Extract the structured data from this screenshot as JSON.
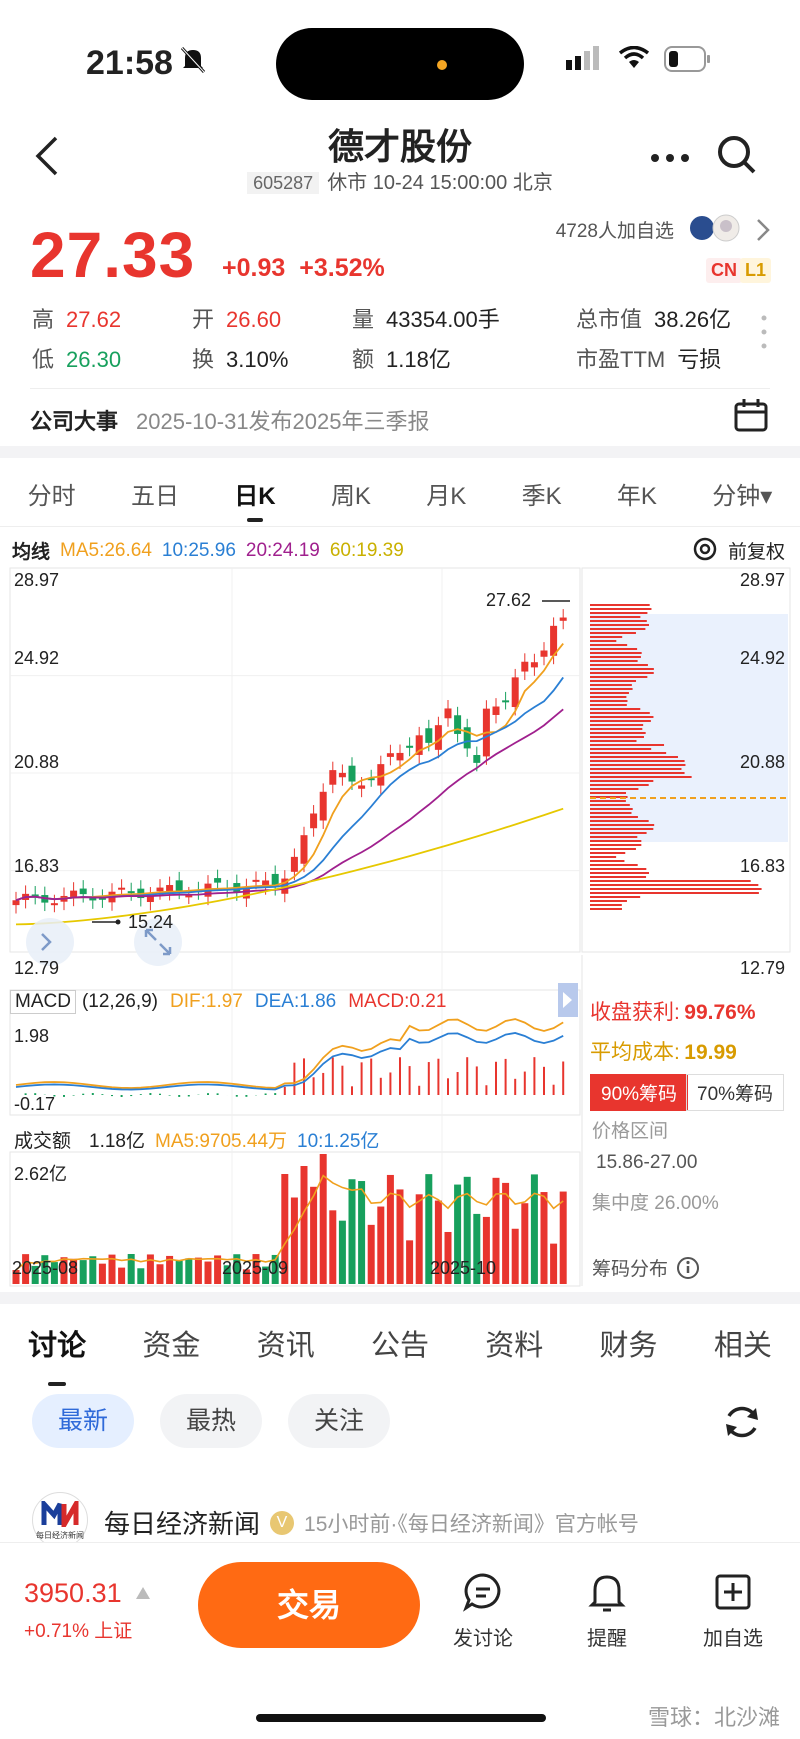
{
  "status": {
    "time": "21:58"
  },
  "header": {
    "title": "德才股份",
    "code": "605287",
    "status_text": "休市 10-24 15:00:00 北京"
  },
  "quote": {
    "price": "27.33",
    "change": "+0.93",
    "change_pct": "+3.52%",
    "followers": "4728人加自选",
    "badges": [
      "CN",
      "L1"
    ],
    "high_label": "高",
    "high": "27.62",
    "low_label": "低",
    "low": "26.30",
    "open_label": "开",
    "open": "26.60",
    "turnover_label": "换",
    "turnover": "3.10%",
    "volume_label": "量",
    "volume": "43354.00手",
    "amount_label": "额",
    "amount": "1.18亿",
    "mktcap_label": "总市值",
    "mktcap": "38.26亿",
    "pe_label": "市盈TTM",
    "pe": "亏损"
  },
  "event": {
    "label": "公司大事",
    "text": "2025-10-31发布2025年三季报"
  },
  "period_tabs": [
    "分时",
    "五日",
    "日K",
    "周K",
    "月K",
    "季K",
    "年K",
    "分钟▾"
  ],
  "ma": {
    "label": "均线",
    "ma5": "MA5:26.64",
    "ma10": "10:25.96",
    "ma20": "20:24.19",
    "ma60": "60:19.39",
    "adjust": "前复权"
  },
  "axis": {
    "y1": "28.97",
    "y2": "24.92",
    "y3": "20.88",
    "y4": "16.83",
    "y5": "12.79",
    "high_mark": "27.62",
    "low_mark": "15.24",
    "dates": [
      "2025-08",
      "2025-09",
      "2025-10"
    ]
  },
  "macd": {
    "label": "MACD",
    "params": "(12,26,9)",
    "dif": "DIF:1.97",
    "dea": "DEA:1.86",
    "macd": "MACD:0.21",
    "top": "1.98",
    "bottom": "-0.17"
  },
  "volume": {
    "label": "成交额",
    "value": "1.18亿",
    "ma5": "MA5:9705.44万",
    "ma10": "10:1.25亿",
    "top": "2.62亿"
  },
  "chips": {
    "profit_label": "收盘获利:",
    "profit": "99.76%",
    "cost_label": "平均成本:",
    "cost": "19.99",
    "btn90": "90%筹码",
    "btn70": "70%筹码",
    "range_label": "价格区间",
    "range": "15.86-27.00",
    "conc_label": "集中度",
    "conc": "26.00%",
    "dist_label": "筹码分布"
  },
  "discuss_tabs": [
    "讨论",
    "资金",
    "资讯",
    "公告",
    "资料",
    "财务",
    "相关"
  ],
  "filters": [
    "最新",
    "最热",
    "关注"
  ],
  "news": {
    "source": "每日经济新闻",
    "meta": "15小时前·《每日经济新闻》官方帐号",
    "logo_text": "每日经济新闻"
  },
  "bottom": {
    "index_value": "3950.31",
    "index_change": "+0.71%",
    "index_name": "上证",
    "trade": "交易",
    "post": "发讨论",
    "remind": "提醒",
    "add": "加自选"
  },
  "watermark": "雪球：北沙滩",
  "colors": {
    "up": "#e8352e",
    "down": "#17a05d",
    "ma5": "#f0a01e",
    "ma10": "#2a7fd4",
    "ma20": "#a0208e",
    "ma60": "#e6c800",
    "accent": "#ff6a13"
  }
}
